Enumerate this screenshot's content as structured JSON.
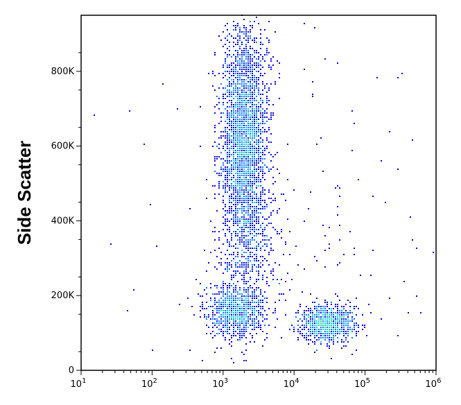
{
  "chart_data": {
    "type": "scatter",
    "style": "density dot plot (pseudocolor)",
    "title": "",
    "xlabel": "",
    "ylabel": "Side Scatter",
    "x_scale": "log",
    "xlim": [
      10,
      1000000
    ],
    "ylim": [
      0,
      950000
    ],
    "x_ticks": [
      {
        "value": 10,
        "base": "10",
        "exp": "1"
      },
      {
        "value": 100,
        "base": "10",
        "exp": "2"
      },
      {
        "value": 1000,
        "base": "10",
        "exp": "3"
      },
      {
        "value": 10000,
        "base": "10",
        "exp": "4"
      },
      {
        "value": 100000,
        "base": "10",
        "exp": "5"
      },
      {
        "value": 1000000,
        "base": "10",
        "exp": "6"
      }
    ],
    "y_ticks": [
      {
        "value": 0,
        "label": "0"
      },
      {
        "value": 200000,
        "label": "200K"
      },
      {
        "value": 400000,
        "label": "400K"
      },
      {
        "value": 600000,
        "label": "600K"
      },
      {
        "value": 800000,
        "label": "800K"
      }
    ],
    "grid": false,
    "legend": "none",
    "density_colors": [
      "#0000cc",
      "#0078ff",
      "#00d2d2",
      "#32c864",
      "#c8dc00",
      "#e11e1e"
    ],
    "populations": [
      {
        "x_center": 2000,
        "y_center": 620000,
        "x_spread_log10": 0.16,
        "y_spread": 150000,
        "share": 0.55
      },
      {
        "x_center": 1500,
        "y_center": 155000,
        "x_spread_log10": 0.2,
        "y_spread": 35000,
        "share": 0.17
      },
      {
        "x_center": 30000,
        "y_center": 125000,
        "x_spread_log10": 0.2,
        "y_spread": 25000,
        "share": 0.17
      },
      {
        "x_center": 2200,
        "y_center": 320000,
        "x_spread_log10": 0.25,
        "y_spread": 90000,
        "share": 0.07
      },
      {
        "x_center": 10000,
        "y_center": 350000,
        "x_spread_log10": 1.1,
        "y_spread": 280000,
        "share": 0.04
      }
    ]
  }
}
